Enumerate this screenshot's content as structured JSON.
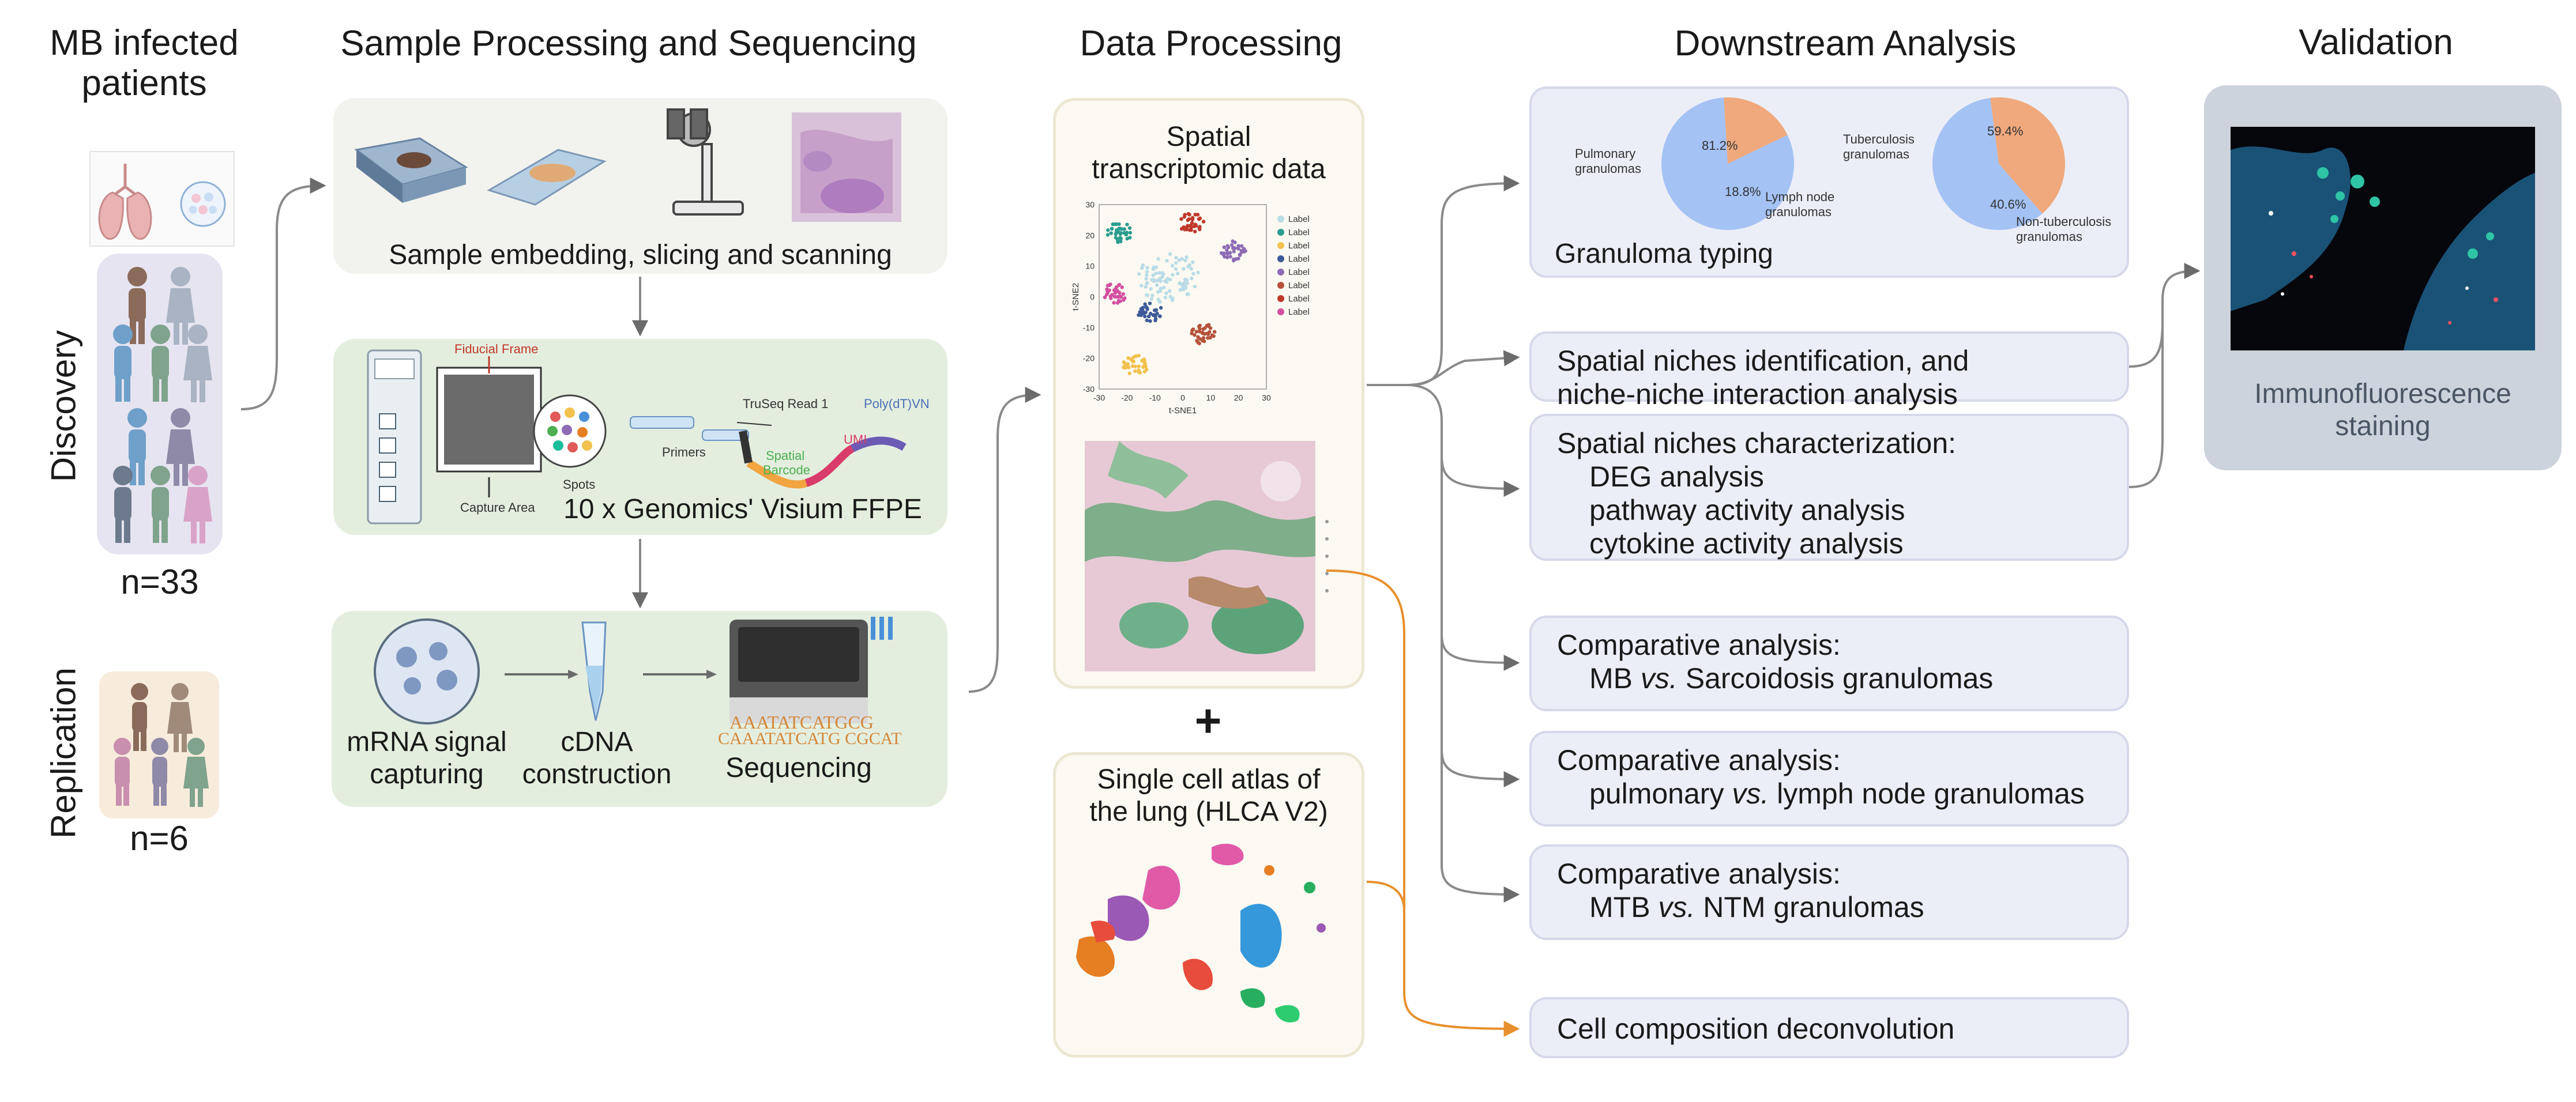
{
  "columns": {
    "patients": "MB infected\npatients",
    "sample": "Sample Processing and Sequencing",
    "data": "Data Processing",
    "downstream": "Downstream Analysis",
    "validation": "Validation"
  },
  "cohorts": {
    "discovery_label": "Discovery",
    "discovery_n": "n=33",
    "replication_label": "Replication",
    "replication_n": "n=6"
  },
  "sample_steps": {
    "embedding": "Sample embedding, slicing and scanning",
    "visium": "10 x Genomics' Visium FFPE",
    "visium_labels": {
      "fiducial": "Fiducial Frame",
      "capture": "Capture Area",
      "spots": "Spots",
      "primers": "Primers",
      "truseq": "TruSeq Read 1",
      "polydt": "Poly(dT)VN",
      "spatial": "Spatial",
      "barcode": "Barcode",
      "umi": "UMI"
    },
    "mrna": "mRNA signal\ncapturing",
    "cdna": "cDNA\nconstruction",
    "sequencing": "Sequencing",
    "seq_text_1": "AAATATCATGCG",
    "seq_text_2": "CAAATATCATG CGCAT"
  },
  "data_processing": {
    "spatial_title": "Spatial\ntranscriptomic data",
    "tsne": {
      "xlabel": "t-SNE1",
      "ylabel": "t-SNE2",
      "xticks": [
        "-30",
        "-20",
        "-10",
        "0",
        "10",
        "20",
        "30"
      ],
      "yticks": [
        "30",
        "20",
        "10",
        "0",
        "-10",
        "-20",
        "-30"
      ],
      "legend": [
        {
          "label": "Label",
          "color": "#b9dce6"
        },
        {
          "label": "Label",
          "color": "#2a9d8f"
        },
        {
          "label": "Label",
          "color": "#f2c14e"
        },
        {
          "label": "Label",
          "color": "#3d5a99"
        },
        {
          "label": "Label",
          "color": "#8e6bb5"
        },
        {
          "label": "Label",
          "color": "#b5523b"
        },
        {
          "label": "Label",
          "color": "#c0392b"
        },
        {
          "label": "Label",
          "color": "#d24fa0"
        }
      ]
    },
    "plus": "+",
    "atlas_title": "Single cell atlas of\nthe lung (HLCA V2)"
  },
  "downstream": {
    "granuloma_typing": "Granuloma typing",
    "pie1": {
      "slices": [
        {
          "label": "Pulmonary\ngranulomas",
          "value": 81.2,
          "pct": "81.2%",
          "color": "#a4c2f4"
        },
        {
          "label": "Lymph node\ngranulomas",
          "value": 18.8,
          "pct": "18.8%",
          "color": "#f0a97c"
        }
      ]
    },
    "pie2": {
      "slices": [
        {
          "label": "Tuberculosis\ngranulomas",
          "value": 59.4,
          "pct": "59.4%",
          "color": "#a4c2f4"
        },
        {
          "label": "Non-tuberculosis\ngranulomas",
          "value": 40.6,
          "pct": "40.6%",
          "color": "#f0a97c"
        }
      ]
    },
    "niches_id": [
      "Spatial niches identification, and",
      "niche-niche interaction analysis"
    ],
    "niches_char_title": "Spatial niches characterization:",
    "niches_char_items": [
      "DEG analysis",
      "pathway activity analysis",
      "cytokine activity analysis"
    ],
    "comp_title": "Comparative analysis:",
    "comp1": {
      "a": "MB ",
      "vs": "vs.",
      "b": " Sarcoidosis granulomas"
    },
    "comp2": {
      "a": "pulmonary ",
      "vs": "vs.",
      "b": " lymph node granulomas"
    },
    "comp3": {
      "a": "MTB ",
      "vs": "vs.",
      "b": " NTM granulomas"
    },
    "deconvolution": "Cell composition deconvolution"
  },
  "validation": {
    "caption": "Immunofluorescence\nstaining"
  },
  "colors": {
    "arrow": "#6b6b6b",
    "orange_arrow": "#e8902d",
    "panel_green": "#dde9dd",
    "panel_light": "#eef3ec",
    "box_fill": "#eceef7",
    "validation_bg": "#cdd3dc"
  }
}
